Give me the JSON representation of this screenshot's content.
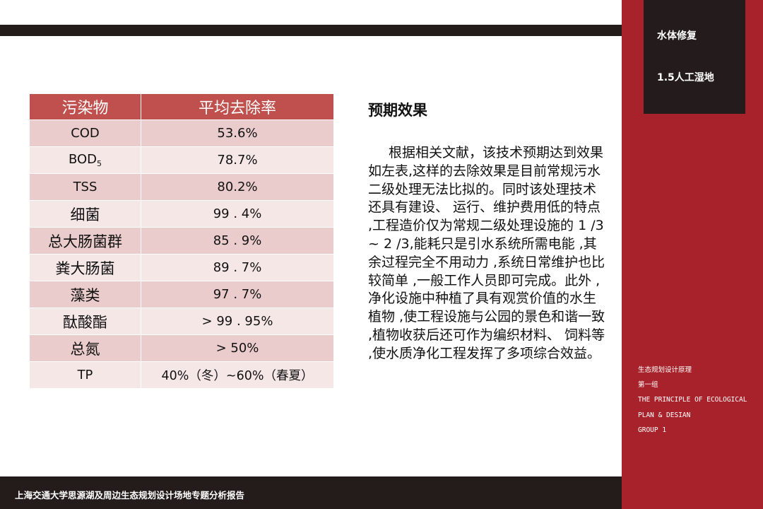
{
  "section": {
    "title": "水体修复",
    "subtitle": "1.5人工湿地"
  },
  "table": {
    "headers": [
      "污染物",
      "平均去除率"
    ],
    "rows": [
      {
        "pollutant": "COD",
        "rate": "53.6%"
      },
      {
        "pollutant": "BOD",
        "pollutant_sub": "5",
        "rate": "78.7%"
      },
      {
        "pollutant": "TSS",
        "rate": "80.2%"
      },
      {
        "pollutant": "细菌",
        "rate": "99 . 4%"
      },
      {
        "pollutant": "总大肠菌群",
        "rate": "85 . 9%"
      },
      {
        "pollutant": "粪大肠菌",
        "rate": "89 . 7%"
      },
      {
        "pollutant": "藻类",
        "rate": "97 . 7%"
      },
      {
        "pollutant": "酞酸酯",
        "rate": "> 99 . 95%"
      },
      {
        "pollutant": "总氮",
        "rate": "> 50%"
      },
      {
        "pollutant": "TP",
        "rate": "40%（冬）~60%（春夏）"
      }
    ]
  },
  "content": {
    "heading": "预期效果",
    "paragraph": "根据相关文献，该技术预期达到效果如左表,这样的去除效果是目前常规污水二级处理无法比拟的。同时该处理技术还具有建设、 运行、维护费用低的特点 ,工程造价仅为常规二级处理设施的 1 /3 ~ 2 /3,能耗只是引水系统所需电能 ,其余过程完全不用动力 ,系统日常维护也比较简单 ,一般工作人员即可完成。此外 ,净化设施中种植了具有观赏价值的水生植物 ,使工程设施与公园的景色和谐一致 ,植物收获后还可作为编织材料、 饲料等 ,使水质净化工程发挥了多项综合效益。"
  },
  "sidebar_info": {
    "course": "生态规划设计原理",
    "group_cn": "第一组",
    "course_en_1": "THE PRINCIPLE OF ECOLOGICAL",
    "course_en_2": "PLAN & DESIAN",
    "group_en": "GROUP 1"
  },
  "footer": {
    "text": "上海交通大学思源湖及周边生态规划设计场地专题分析报告"
  },
  "colors": {
    "sidebar": "#a8222b",
    "dark": "#231c1b",
    "table_header": "#c0504d",
    "row_odd": "#ebcccc",
    "row_even": "#f6e7e7"
  }
}
